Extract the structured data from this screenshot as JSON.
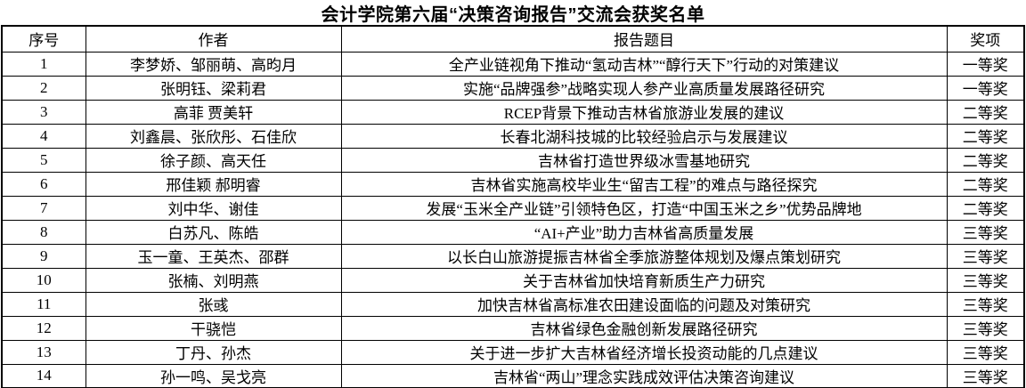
{
  "title": "会计学院第六届“决策咨询报告”交流会获奖名单",
  "table": {
    "headers": {
      "no": "序号",
      "authors": "作者",
      "report": "报告题目",
      "award": "奖项"
    },
    "rows": [
      {
        "no": "1",
        "authors": "李梦娇、邹丽萌、高昀月",
        "report": "全产业链视角下推动“氢动吉林”“醇行天下”行动的对策建议",
        "award": "一等奖"
      },
      {
        "no": "2",
        "authors": "张明钰、梁莉君",
        "report": "实施“品牌强参”战略实现人参产业高质量发展路径研究",
        "award": "一等奖"
      },
      {
        "no": "3",
        "authors": "高菲 贾美轩",
        "report": "RCEP背景下推动吉林省旅游业发展的建议",
        "award": "二等奖"
      },
      {
        "no": "4",
        "authors": "刘鑫晨、张欣彤、石佳欣",
        "report": "长春北湖科技城的比较经验启示与发展建议",
        "award": "二等奖"
      },
      {
        "no": "5",
        "authors": "徐子颜、高天任",
        "report": "吉林省打造世界级冰雪基地研究",
        "award": "二等奖"
      },
      {
        "no": "6",
        "authors": "邢佳颖 郝明睿",
        "report": "吉林省实施高校毕业生“留吉工程”的难点与路径探究",
        "award": "二等奖"
      },
      {
        "no": "7",
        "authors": "刘中华、谢佳",
        "report": "发展“玉米全产业链”引领特色区，打造“中国玉米之乡”优势品牌地",
        "award": "二等奖"
      },
      {
        "no": "8",
        "authors": "白苏凡、陈皓",
        "report": "“AI+产业”助力吉林省高质量发展",
        "award": "三等奖"
      },
      {
        "no": "9",
        "authors": "玉一童、王英杰、邵群",
        "report": "以长白山旅游提振吉林省全季旅游整体规划及爆点策划研究",
        "award": "三等奖"
      },
      {
        "no": "10",
        "authors": "张楠、刘明燕",
        "report": "关于吉林省加快培育新质生产力研究",
        "award": "三等奖"
      },
      {
        "no": "11",
        "authors": "张彧",
        "report": "加快吉林省高标准农田建设面临的问题及对策研究",
        "award": "三等奖"
      },
      {
        "no": "12",
        "authors": "干骁恺",
        "report": "吉林省绿色金融创新发展路径研究",
        "award": "三等奖"
      },
      {
        "no": "13",
        "authors": "丁丹、孙杰",
        "report": "关于进一步扩大吉林省经济增长投资动能的几点建议",
        "award": "三等奖"
      },
      {
        "no": "14",
        "authors": "孙一鸣、吴戈亮",
        "report": "吉林省“两山”理念实践成效评估决策咨询建议",
        "award": "三等奖"
      }
    ]
  }
}
